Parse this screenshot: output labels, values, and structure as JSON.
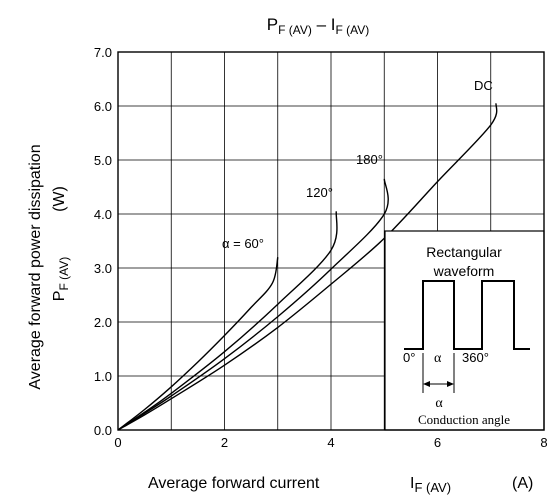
{
  "chart_data": {
    "type": "line",
    "title_main_p": "P",
    "title_sub_p": "F (AV)",
    "title_dash": " – I",
    "title_sub_i": "F (AV)",
    "xlabel": "Average forward current",
    "xlabel_symbol": "I",
    "xlabel_symbol_sub": "F (AV)",
    "xlabel_unit": "(A)",
    "ylabel_line1": "Average forward power dissipation",
    "ylabel_symbol": "P",
    "ylabel_symbol_sub": "F (AV)",
    "ylabel_unit": "(W)",
    "xlim": [
      0,
      8
    ],
    "ylim": [
      0,
      7
    ],
    "x_ticks": [
      "0",
      "2",
      "4",
      "6",
      "8"
    ],
    "y_ticks": [
      "0.0",
      "1.0",
      "2.0",
      "3.0",
      "4.0",
      "5.0",
      "6.0",
      "7.0"
    ],
    "grid": true,
    "series": [
      {
        "name": "α = 60°",
        "points": [
          [
            0,
            0
          ],
          [
            0.5,
            0.38
          ],
          [
            1,
            0.8
          ],
          [
            1.5,
            1.26
          ],
          [
            2,
            1.75
          ],
          [
            2.5,
            2.27
          ],
          [
            2.9,
            2.72
          ],
          [
            3.0,
            3.2
          ]
        ]
      },
      {
        "name": "120°",
        "points": [
          [
            0,
            0
          ],
          [
            0.5,
            0.33
          ],
          [
            1,
            0.68
          ],
          [
            2,
            1.45
          ],
          [
            3,
            2.33
          ],
          [
            4,
            3.33
          ],
          [
            4.1,
            4.05
          ]
        ]
      },
      {
        "name": "180°",
        "points": [
          [
            0,
            0
          ],
          [
            0.5,
            0.31
          ],
          [
            1,
            0.63
          ],
          [
            2,
            1.32
          ],
          [
            3,
            2.1
          ],
          [
            4,
            2.98
          ],
          [
            5,
            4.0
          ],
          [
            5.0,
            4.65
          ]
        ]
      },
      {
        "name": "DC",
        "points": [
          [
            0,
            0
          ],
          [
            0.5,
            0.28
          ],
          [
            1,
            0.58
          ],
          [
            2,
            1.2
          ],
          [
            3,
            1.9
          ],
          [
            4,
            2.7
          ],
          [
            5,
            3.55
          ],
          [
            6,
            4.6
          ],
          [
            7,
            5.65
          ],
          [
            7.1,
            6.05
          ]
        ]
      }
    ],
    "inset": {
      "title_line1": "Rectangular",
      "title_line2": "waveform",
      "label_0": "0°",
      "label_alpha": "α",
      "label_360": "360°",
      "label_alpha_bottom": "α",
      "caption": "Conduction angle"
    }
  }
}
